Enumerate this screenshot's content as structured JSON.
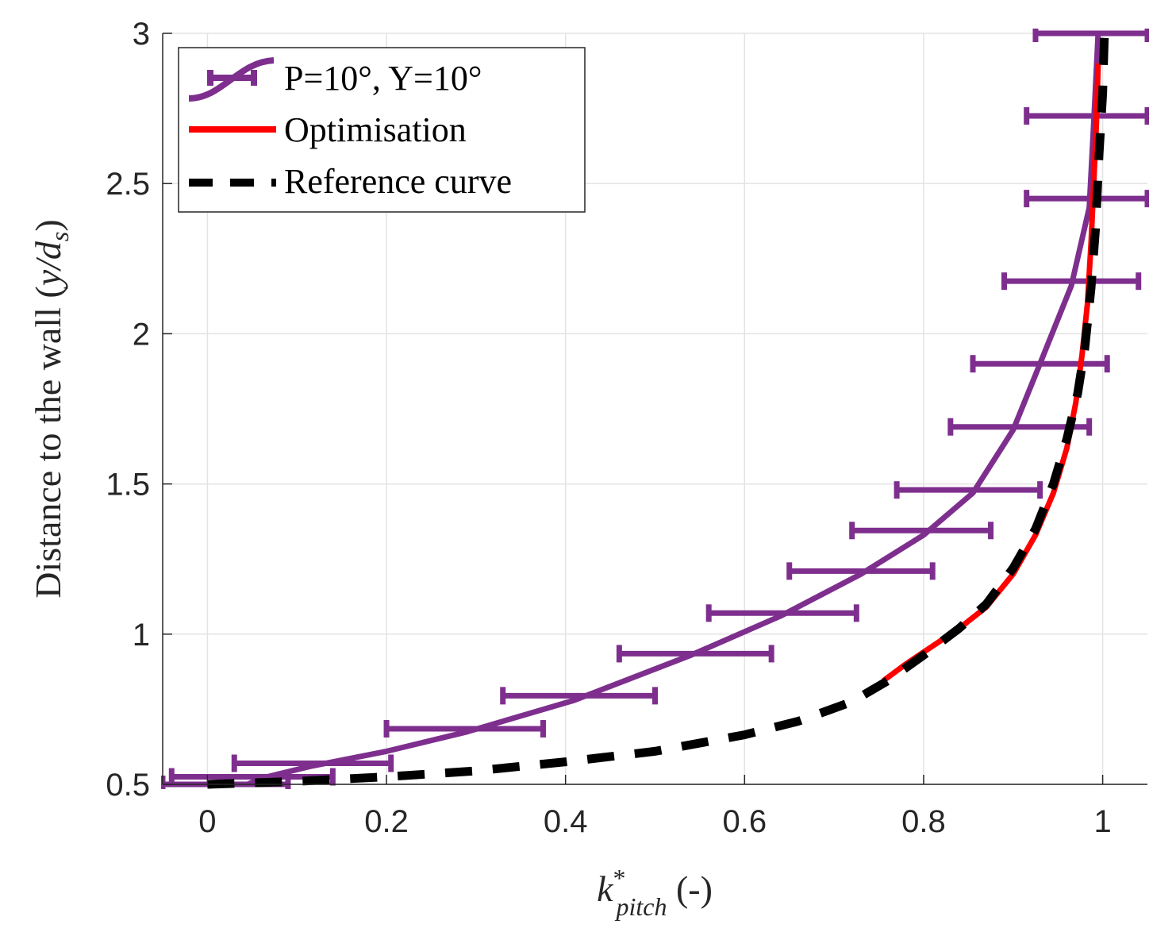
{
  "chart_data": {
    "type": "line",
    "xlabel": {
      "base": "k",
      "sup": "*",
      "sub": "pitch",
      "unit": " (-)"
    },
    "ylabel": {
      "prefix": "Distance to the wall (",
      "var": "y/d",
      "sub": "s",
      "suffix": ")"
    },
    "xlim": [
      -0.05,
      1.05
    ],
    "ylim": [
      0.5,
      3
    ],
    "xticks": [
      "0",
      "0.2",
      "0.4",
      "0.6",
      "0.8",
      "1"
    ],
    "xtick_values": [
      0,
      0.2,
      0.4,
      0.6,
      0.8,
      1
    ],
    "yticks": [
      "0.5",
      "1",
      "1.5",
      "2",
      "2.5",
      "3"
    ],
    "ytick_values": [
      0.5,
      1,
      1.5,
      2,
      2.5,
      3
    ],
    "grid": true,
    "legend_position": "top-left",
    "series": [
      {
        "name": "P=10°, Y=10°",
        "color": "#7e2f8e",
        "style": "solid-errorbar",
        "points": [
          [
            0.045,
            0.5
          ],
          [
            0.06,
            0.52
          ],
          [
            0.115,
            0.56
          ],
          [
            0.2,
            0.61
          ],
          [
            0.29,
            0.675
          ],
          [
            0.41,
            0.78
          ],
          [
            0.54,
            0.93
          ],
          [
            0.64,
            1.06
          ],
          [
            0.73,
            1.2
          ],
          [
            0.8,
            1.33
          ],
          [
            0.855,
            1.47
          ],
          [
            0.9,
            1.68
          ],
          [
            0.93,
            1.9
          ],
          [
            0.965,
            2.16
          ],
          [
            0.985,
            2.42
          ],
          [
            0.99,
            2.7
          ],
          [
            0.995,
            3.0
          ]
        ],
        "errorbars": [
          {
            "y": 0.5,
            "xmin": -0.05,
            "xmax": 0.09
          },
          {
            "y": 0.525,
            "xmin": -0.04,
            "xmax": 0.14
          },
          {
            "y": 0.57,
            "xmin": 0.03,
            "xmax": 0.205
          },
          {
            "y": 0.685,
            "xmin": 0.2,
            "xmax": 0.375
          },
          {
            "y": 0.795,
            "xmin": 0.33,
            "xmax": 0.5
          },
          {
            "y": 0.935,
            "xmin": 0.46,
            "xmax": 0.63
          },
          {
            "y": 1.07,
            "xmin": 0.56,
            "xmax": 0.725
          },
          {
            "y": 1.21,
            "xmin": 0.65,
            "xmax": 0.81
          },
          {
            "y": 1.345,
            "xmin": 0.72,
            "xmax": 0.875
          },
          {
            "y": 1.48,
            "xmin": 0.77,
            "xmax": 0.93
          },
          {
            "y": 1.69,
            "xmin": 0.83,
            "xmax": 0.985
          },
          {
            "y": 1.9,
            "xmin": 0.855,
            "xmax": 1.005
          },
          {
            "y": 2.175,
            "xmin": 0.89,
            "xmax": 1.04
          },
          {
            "y": 2.45,
            "xmin": 0.915,
            "xmax": 1.05
          },
          {
            "y": 2.725,
            "xmin": 0.915,
            "xmax": 1.05
          },
          {
            "y": 3.0,
            "xmin": 0.925,
            "xmax": 1.05
          }
        ]
      },
      {
        "name": "Optimisation",
        "color": "#ff0000",
        "style": "solid",
        "points": [
          [
            0.755,
            0.845
          ],
          [
            0.78,
            0.9
          ],
          [
            0.81,
            0.96
          ],
          [
            0.84,
            1.02
          ],
          [
            0.87,
            1.09
          ],
          [
            0.9,
            1.2
          ],
          [
            0.925,
            1.33
          ],
          [
            0.945,
            1.47
          ],
          [
            0.96,
            1.62
          ],
          [
            0.97,
            1.77
          ],
          [
            0.977,
            1.93
          ],
          [
            0.983,
            2.1
          ],
          [
            0.987,
            2.3
          ],
          [
            0.99,
            2.5
          ],
          [
            0.993,
            2.7
          ],
          [
            0.995,
            2.9
          ]
        ]
      },
      {
        "name": "Reference curve",
        "color": "#000000",
        "style": "dashed",
        "points": [
          [
            0.0,
            0.5
          ],
          [
            0.1,
            0.51
          ],
          [
            0.2,
            0.525
          ],
          [
            0.3,
            0.545
          ],
          [
            0.4,
            0.575
          ],
          [
            0.5,
            0.61
          ],
          [
            0.6,
            0.665
          ],
          [
            0.66,
            0.71
          ],
          [
            0.72,
            0.775
          ],
          [
            0.76,
            0.845
          ],
          [
            0.8,
            0.93
          ],
          [
            0.84,
            1.02
          ],
          [
            0.87,
            1.1
          ],
          [
            0.9,
            1.22
          ],
          [
            0.925,
            1.35
          ],
          [
            0.945,
            1.5
          ],
          [
            0.96,
            1.65
          ],
          [
            0.972,
            1.8
          ],
          [
            0.98,
            1.95
          ],
          [
            0.987,
            2.15
          ],
          [
            0.992,
            2.35
          ],
          [
            0.996,
            2.6
          ],
          [
            1.0,
            2.8
          ],
          [
            1.002,
            3.0
          ]
        ]
      }
    ]
  }
}
